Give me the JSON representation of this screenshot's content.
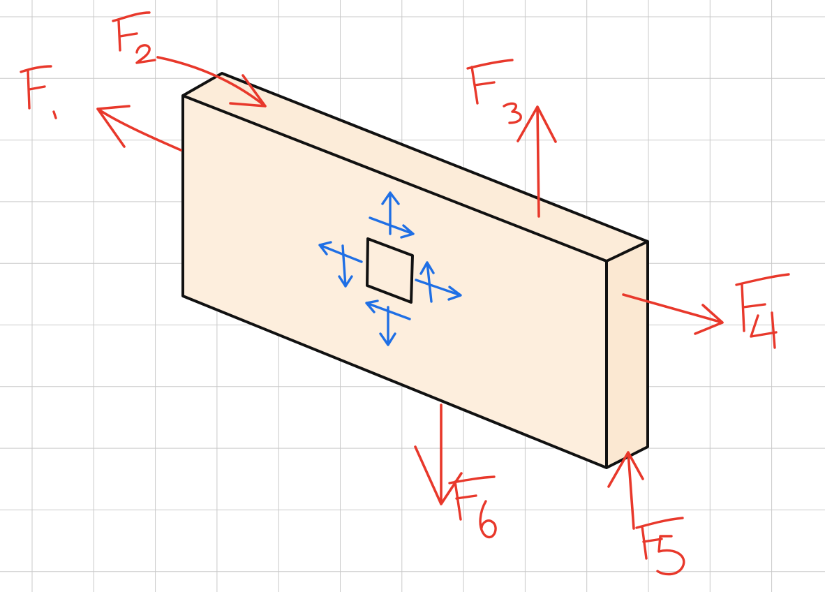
{
  "colors": {
    "grid": "#c9c9c9",
    "block_front": "#fdeedd",
    "block_top": "#fcecd9",
    "block_side": "#fbe8d2",
    "outline": "#111111",
    "force_arrows": "#e8382b",
    "stress_arrows": "#1f6fe5"
  },
  "forces": [
    {
      "id": "F1",
      "label": "F₁",
      "direction": "up-left"
    },
    {
      "id": "F2",
      "label": "F₂",
      "direction": "down-right"
    },
    {
      "id": "F3",
      "label": "F₃",
      "direction": "up"
    },
    {
      "id": "F4",
      "label": "F₄",
      "direction": "right"
    },
    {
      "id": "F5",
      "label": "F₅",
      "direction": "up"
    },
    {
      "id": "F6",
      "label": "F₆",
      "direction": "down"
    }
  ],
  "stress_element": {
    "description_icon": "square-element-with-normal-and-shear-arrows"
  }
}
